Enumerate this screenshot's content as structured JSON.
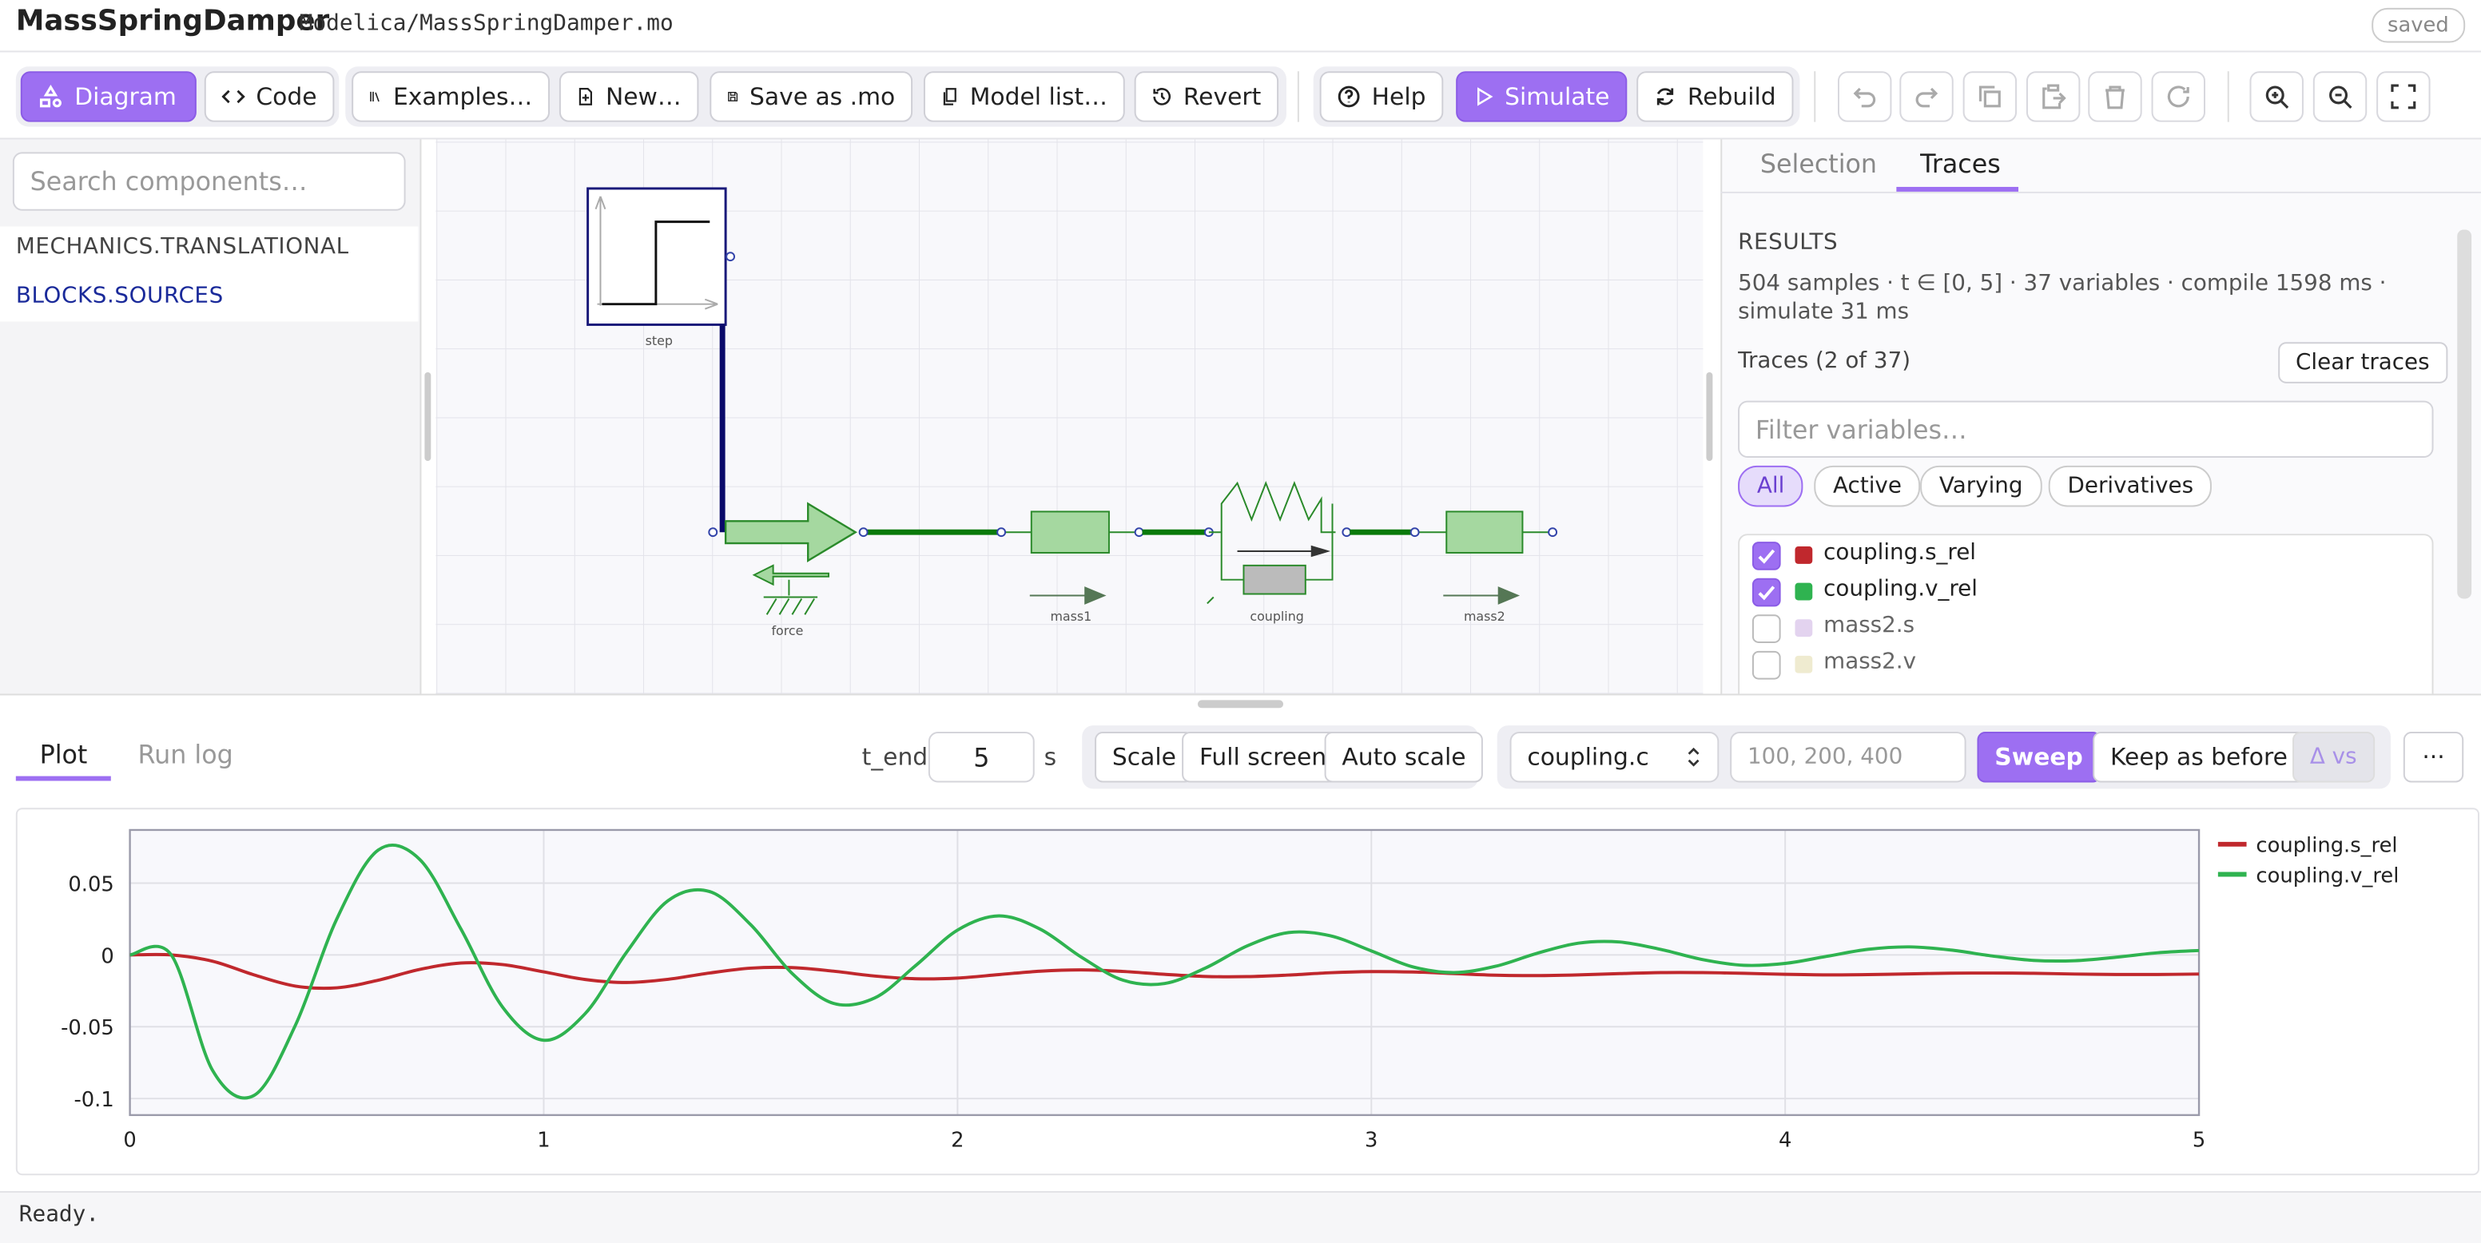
{
  "header": {
    "title": "MassSpringDamper",
    "path": "Modelica/MassSpringDamper.mo",
    "status": "saved"
  },
  "toolbar": {
    "buttons": [
      "Diagram",
      "Code",
      "Examples…",
      "New…",
      "Save as .mo",
      "Model list…",
      "Revert",
      "Help",
      "Simulate",
      "Rebuild"
    ]
  },
  "sidebar": {
    "search_placeholder": "Search components…",
    "libraries": [
      "MECHANICS.TRANSLATIONAL",
      "BLOCKS.SOURCES"
    ]
  },
  "diagram": {
    "components": [
      "step",
      "force",
      "mass1",
      "coupling",
      "mass2"
    ]
  },
  "panel": {
    "tabs": [
      "Selection",
      "Traces"
    ],
    "results_heading": "RESULTS",
    "results_info": "504 samples · t ∈ [0, 5] · 37 variables · compile 1598 ms · simulate 31 ms",
    "traces_heading": "Traces (2 of 37)",
    "clear_button": "Clear traces",
    "filter_placeholder": "Filter variables…",
    "chips": [
      "All",
      "Active",
      "Varying",
      "Derivatives"
    ],
    "variables": [
      {
        "name": "coupling.s_rel",
        "checked": true,
        "color": "#c0282d"
      },
      {
        "name": "coupling.v_rel",
        "checked": true,
        "color": "#2fb350"
      },
      {
        "name": "mass2.s",
        "checked": false,
        "color": "#e3d3ef"
      },
      {
        "name": "mass2.v",
        "checked": false,
        "color": "#efebd0"
      }
    ]
  },
  "bottom": {
    "tabs": [
      "Plot",
      "Run log"
    ],
    "t_end_label": "t_end",
    "t_end": 5,
    "t_end_unit": "s",
    "buttons": [
      "Scale",
      "Full screen",
      "Auto scale"
    ],
    "sweep_param": "coupling.c",
    "sweep_placeholder": "100, 200, 400",
    "sweep_button": "Sweep",
    "keep_button": "Keep as before",
    "delta_button": "Δ vs",
    "more_button": "···"
  },
  "chart_data": {
    "type": "line",
    "x": [
      0,
      0.1,
      0.2,
      0.3,
      0.4,
      0.5,
      0.6,
      0.7,
      0.8,
      0.9,
      1,
      1.1,
      1.2,
      1.3,
      1.4,
      1.5,
      1.6,
      1.7,
      1.8,
      1.9,
      2,
      2.1,
      2.2,
      2.3,
      2.4,
      2.5,
      2.6,
      2.7,
      2.8,
      2.9,
      3,
      3.1,
      3.2,
      3.3,
      3.4,
      3.5,
      3.6,
      3.7,
      3.8,
      3.9,
      4,
      4.1,
      4.2,
      4.3,
      4.4,
      4.5,
      4.6,
      4.7,
      4.8,
      4.9,
      5
    ],
    "series": [
      {
        "name": "coupling.s_rel",
        "color": "#c0282d",
        "values": [
          0,
          0,
          -0.0044,
          -0.0139,
          -0.0217,
          -0.0229,
          -0.0176,
          -0.0101,
          -0.0056,
          -0.0067,
          -0.0118,
          -0.0171,
          -0.0192,
          -0.017,
          -0.0126,
          -0.0092,
          -0.0088,
          -0.0113,
          -0.0147,
          -0.0166,
          -0.0161,
          -0.0137,
          -0.0113,
          -0.0104,
          -0.0115,
          -0.0135,
          -0.015,
          -0.0151,
          -0.014,
          -0.0124,
          -0.0116,
          -0.0119,
          -0.013,
          -0.0141,
          -0.0144,
          -0.0139,
          -0.013,
          -0.0123,
          -0.0123,
          -0.0128,
          -0.0135,
          -0.0139,
          -0.0137,
          -0.0132,
          -0.0127,
          -0.0126,
          -0.0128,
          -0.0133,
          -0.0136,
          -0.0136,
          -0.0133
        ]
      },
      {
        "name": "coupling.v_rel",
        "color": "#2fb350",
        "values": [
          0,
          0,
          -0.0805,
          -0.0978,
          -0.0489,
          0.0251,
          0.073,
          0.0666,
          0.018,
          -0.0361,
          -0.0594,
          -0.0409,
          0.0018,
          0.0377,
          0.0442,
          0.0211,
          -0.0128,
          -0.0337,
          -0.0299,
          -0.0071,
          0.0173,
          0.0272,
          0.0179,
          -0.0017,
          -0.0176,
          -0.0199,
          -0.009,
          0.0063,
          0.0156,
          0.0134,
          0.0028,
          -0.0083,
          -0.0123,
          -0.0079,
          0.0011,
          0.0082,
          0.009,
          0.0038,
          -0.0032,
          -0.0072,
          -0.0059,
          -0.001,
          0.0039,
          0.0056,
          0.0034,
          -0.0007,
          -0.0038,
          -0.004,
          -0.0016,
          0.0015,
          0.0031
        ]
      }
    ],
    "xlim": [
      0,
      5
    ],
    "xticks": [
      0,
      1,
      2,
      3,
      4,
      5
    ],
    "ylim": [
      -0.1115,
      0.087
    ],
    "yticks": [
      0.05,
      0,
      -0.05,
      -0.1
    ],
    "grid": true,
    "legend": "right"
  },
  "status": "Ready."
}
